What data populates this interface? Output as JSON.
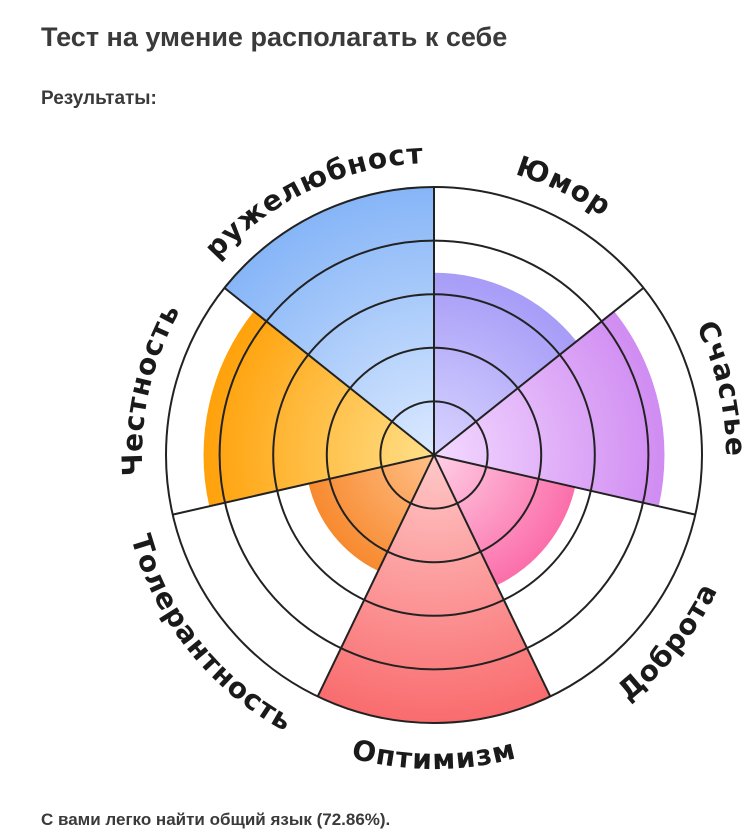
{
  "page": {
    "title": "Тест на умение располагать к себе",
    "subtitle": "Результаты:",
    "result_text": "С вами легко найти общий язык (72.86%)."
  },
  "chart_data": {
    "type": "polar-area",
    "scale_max": 5,
    "grid_rings": [
      1,
      2,
      3,
      4,
      5
    ],
    "categories": [
      "Юмор",
      "Счастье",
      "Доброта",
      "Оптимизм",
      "Толерантность",
      "Честность",
      "Дружелюбность"
    ],
    "values": [
      3.4,
      4.3,
      2.7,
      5.0,
      2.4,
      4.3,
      5.0
    ],
    "colors": [
      [
        "#d8d4ff",
        "#a79cf7"
      ],
      [
        "#f3d9ff",
        "#d08cf2"
      ],
      [
        "#ffd0e6",
        "#fb6eaa"
      ],
      [
        "#ffc8c8",
        "#f96c6e"
      ],
      [
        "#ffc089",
        "#f78a2f"
      ],
      [
        "#ffe08a",
        "#ffa10a"
      ],
      [
        "#dbe9ff",
        "#86b5f7"
      ]
    ]
  }
}
